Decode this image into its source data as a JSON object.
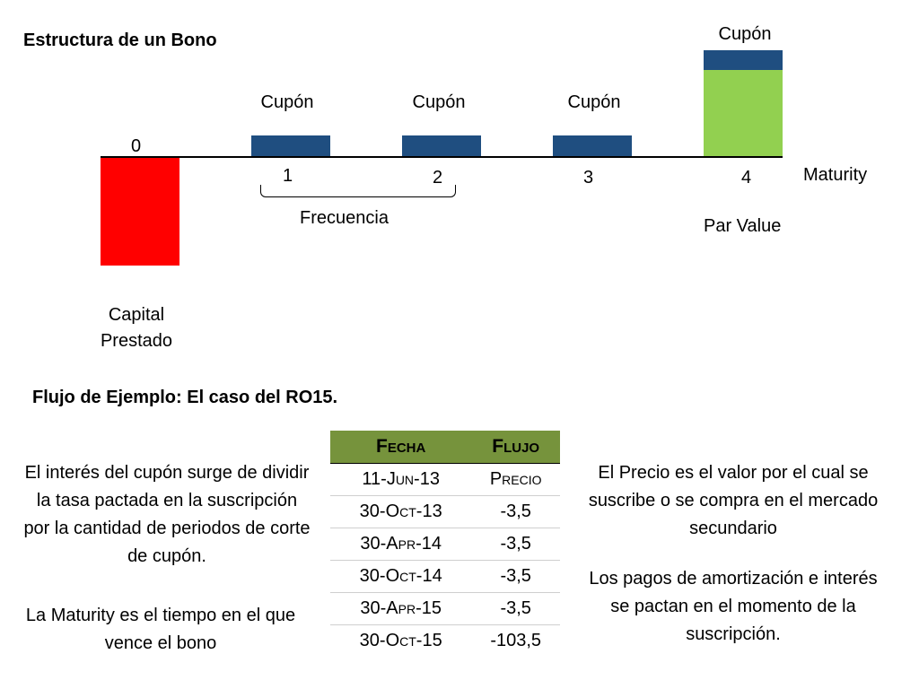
{
  "title": "Estructura de un Bono",
  "timeline": {
    "start_label": "0",
    "periods": [
      "1",
      "2",
      "3",
      "4"
    ],
    "maturity_label": "Maturity",
    "coupon_label": "Cupón",
    "frequency_label": "Frecuencia",
    "par_value_label": "Par Value",
    "capital_label_line1": "Capital",
    "capital_label_line2": "Prestado"
  },
  "colors": {
    "capital": "#ff0000",
    "coupon": "#1f4e80",
    "par_value": "#92d050",
    "table_header": "#76933c"
  },
  "example_title": "Flujo de Ejemplo: El caso del RO15.",
  "left_text": {
    "p1": "El interés del cupón surge de dividir la tasa pactada en la suscripción por la cantidad de periodos de corte de cupón.",
    "p2": "La Maturity es el tiempo en el que vence el bono"
  },
  "right_text": {
    "p1": "El Precio es el valor por el cual se suscribe o se compra en el mercado secundario",
    "p2": "Los pagos de amortización e interés se pactan en el momento de la suscripción."
  },
  "table": {
    "headers": [
      "Fecha",
      "Flujo"
    ],
    "rows": [
      [
        "11-Jun-13",
        "Precio"
      ],
      [
        "30-Oct-13",
        "-3,5"
      ],
      [
        "30-Apr-14",
        "-3,5"
      ],
      [
        "30-Oct-14",
        "-3,5"
      ],
      [
        "30-Apr-15",
        "-3,5"
      ],
      [
        "30-Oct-15",
        "-103,5"
      ]
    ]
  }
}
